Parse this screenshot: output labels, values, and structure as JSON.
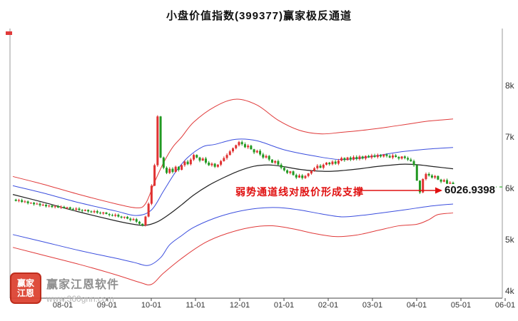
{
  "title": "小盘价值指数(399377)赢家极反通道",
  "annotation": {
    "text": "弱势通道线对股价形成支撑",
    "price_label": "6026.9398"
  },
  "watermark": {
    "brand": "赢家江恩软件",
    "url": "www.360gnn.com",
    "seal_line1": "赢家",
    "seal_line2": "江恩"
  },
  "chart_data": {
    "type": "candlestick",
    "title": "小盘价值指数(399377)赢家极反通道",
    "x_axis_labels": [
      "08-01",
      "09-01",
      "10-01",
      "11-01",
      "12-01",
      "01-01",
      "02-01",
      "03-01",
      "04-01",
      "05-01",
      "06-01"
    ],
    "y_axis_ticks": [
      {
        "label": "8k",
        "value": 8000
      },
      {
        "label": "7k",
        "value": 7000
      },
      {
        "label": "6k",
        "value": 6000
      },
      {
        "label": "5k",
        "value": 5000
      },
      {
        "label": "4k",
        "value": 4000
      }
    ],
    "last_price": 6026.9398,
    "closes": [
      5780,
      5755,
      5770,
      5735,
      5745,
      5710,
      5720,
      5690,
      5700,
      5670,
      5680,
      5650,
      5665,
      5635,
      5650,
      5625,
      5640,
      5615,
      5630,
      5600,
      5585,
      5605,
      5575,
      5560,
      5580,
      5550,
      5535,
      5555,
      5525,
      5510,
      5530,
      5500,
      5480,
      5465,
      5485,
      5450,
      5430,
      5445,
      5410,
      5380,
      5400,
      5350,
      5310,
      5280,
      5450,
      5700,
      6050,
      6450,
      7400,
      6600,
      6400,
      6300,
      6380,
      6320,
      6420,
      6360,
      6450,
      6520,
      6470,
      6560,
      6650,
      6600,
      6540,
      6580,
      6500,
      6450,
      6480,
      6420,
      6460,
      6530,
      6590,
      6650,
      6720,
      6780,
      6840,
      6900,
      6860,
      6800,
      6830,
      6760,
      6700,
      6730,
      6660,
      6600,
      6630,
      6560,
      6500,
      6530,
      6460,
      6400,
      6350,
      6300,
      6330,
      6260,
      6210,
      6250,
      6200,
      6240,
      6290,
      6340,
      6390,
      6440,
      6400,
      6460,
      6500,
      6470,
      6520,
      6480,
      6540,
      6590,
      6550,
      6600,
      6560,
      6610,
      6570,
      6620,
      6580,
      6630,
      6600,
      6640,
      6610,
      6650,
      6620,
      6660,
      6630,
      6600,
      6640,
      6610,
      6580,
      6620,
      6590,
      6560,
      6530,
      6450,
      6150,
      5920,
      6180,
      6280,
      6250,
      6210,
      6240,
      6170,
      6130,
      6160,
      6090,
      6110,
      6026.9398
    ],
    "channels": [
      {
        "name": "upper-red",
        "color": "#e03a3a",
        "width": 1,
        "points": [
          [
            0,
            6230
          ],
          [
            10,
            6080
          ],
          [
            22,
            5880
          ],
          [
            34,
            5700
          ],
          [
            41,
            5620
          ],
          [
            44,
            5700
          ],
          [
            47,
            6120
          ],
          [
            50,
            6500
          ],
          [
            53,
            6800
          ],
          [
            56,
            7000
          ],
          [
            60,
            7290
          ],
          [
            67,
            7590
          ],
          [
            74,
            7735
          ],
          [
            81,
            7620
          ],
          [
            88,
            7325
          ],
          [
            95,
            7130
          ],
          [
            102,
            7060
          ],
          [
            109,
            7090
          ],
          [
            116,
            7130
          ],
          [
            124,
            7190
          ],
          [
            131,
            7250
          ],
          [
            138,
            7310
          ],
          [
            146,
            7350
          ]
        ]
      },
      {
        "name": "upper-blue",
        "color": "#3b4ede",
        "width": 1,
        "points": [
          [
            0,
            6050
          ],
          [
            10,
            5910
          ],
          [
            22,
            5720
          ],
          [
            34,
            5560
          ],
          [
            41,
            5470
          ],
          [
            46,
            5580
          ],
          [
            50,
            5950
          ],
          [
            54,
            6320
          ],
          [
            58,
            6600
          ],
          [
            63,
            6810
          ],
          [
            67,
            6855
          ],
          [
            74,
            6955
          ],
          [
            81,
            6925
          ],
          [
            90,
            6750
          ],
          [
            100,
            6630
          ],
          [
            109,
            6560
          ],
          [
            119,
            6620
          ],
          [
            128,
            6705
          ],
          [
            138,
            6765
          ],
          [
            146,
            6795
          ]
        ]
      },
      {
        "name": "middle-black",
        "color": "#222222",
        "width": 1.2,
        "points": [
          [
            0,
            5880
          ],
          [
            10,
            5730
          ],
          [
            22,
            5540
          ],
          [
            34,
            5370
          ],
          [
            40,
            5300
          ],
          [
            44,
            5280
          ],
          [
            48,
            5350
          ],
          [
            52,
            5500
          ],
          [
            56,
            5680
          ],
          [
            60,
            5870
          ],
          [
            65,
            6060
          ],
          [
            70,
            6210
          ],
          [
            75,
            6340
          ],
          [
            80,
            6430
          ],
          [
            85,
            6455
          ],
          [
            90,
            6420
          ],
          [
            95,
            6370
          ],
          [
            100,
            6340
          ],
          [
            105,
            6330
          ],
          [
            110,
            6350
          ],
          [
            115,
            6380
          ],
          [
            120,
            6420
          ],
          [
            125,
            6450
          ],
          [
            130,
            6470
          ],
          [
            135,
            6455
          ],
          [
            140,
            6420
          ],
          [
            146,
            6380
          ]
        ]
      },
      {
        "name": "lower-blue",
        "color": "#3b4ede",
        "width": 1,
        "points": [
          [
            0,
            5100
          ],
          [
            10,
            4960
          ],
          [
            22,
            4790
          ],
          [
            34,
            4640
          ],
          [
            40,
            4560
          ],
          [
            45,
            4500
          ],
          [
            49,
            4650
          ],
          [
            52,
            4900
          ],
          [
            56,
            5080
          ],
          [
            60,
            5240
          ],
          [
            67,
            5420
          ],
          [
            74,
            5540
          ],
          [
            81,
            5610
          ],
          [
            88,
            5625
          ],
          [
            95,
            5580
          ],
          [
            102,
            5505
          ],
          [
            109,
            5445
          ],
          [
            116,
            5475
          ],
          [
            124,
            5535
          ],
          [
            131,
            5590
          ],
          [
            138,
            5650
          ],
          [
            146,
            5695
          ]
        ]
      },
      {
        "name": "lower-red",
        "color": "#e03a3a",
        "width": 1,
        "points": [
          [
            0,
            4850
          ],
          [
            10,
            4700
          ],
          [
            22,
            4520
          ],
          [
            34,
            4320
          ],
          [
            42,
            4170
          ],
          [
            46,
            4130
          ],
          [
            50,
            4350
          ],
          [
            57,
            4680
          ],
          [
            64,
            4950
          ],
          [
            71,
            5120
          ],
          [
            79,
            5240
          ],
          [
            86,
            5270
          ],
          [
            93,
            5210
          ],
          [
            100,
            5120
          ],
          [
            107,
            5060
          ],
          [
            114,
            5090
          ],
          [
            121,
            5180
          ],
          [
            128,
            5270
          ],
          [
            134,
            5300
          ],
          [
            138,
            5390
          ],
          [
            141,
            5490
          ],
          [
            146,
            5520
          ]
        ]
      }
    ],
    "colors": {
      "up": "#e03131",
      "down": "#229922",
      "channel_red": "#e03a3a",
      "channel_blue": "#3b4ede",
      "channel_mid": "#222222",
      "last_price_line": "#22aa22",
      "annotation": "#e01010",
      "axis": "#444444"
    }
  }
}
